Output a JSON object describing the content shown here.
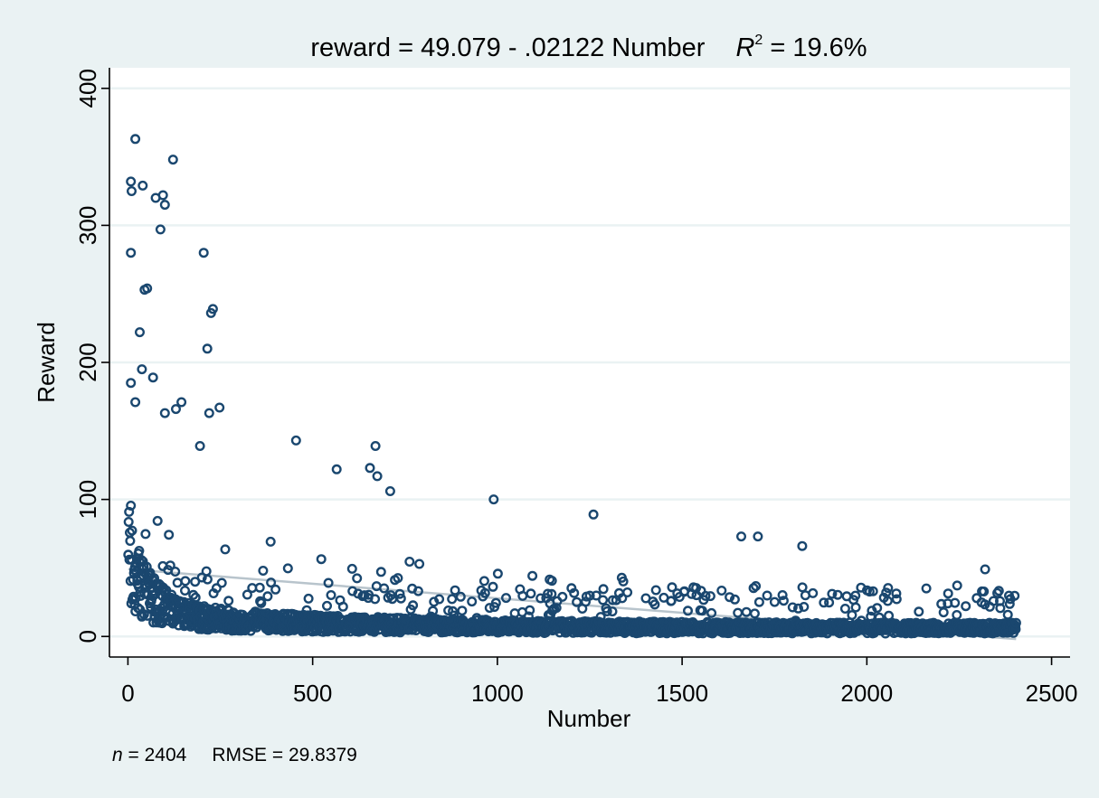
{
  "chart_data": {
    "type": "scatter",
    "title": {
      "prefix": "reward = 49.079 - .02122 Number",
      "r2_symbol": "R",
      "r2_superscript": "2",
      "r2_value": " = 19.6%"
    },
    "xlabel": "Number",
    "ylabel": "Reward",
    "xlim": [
      -50,
      2550
    ],
    "ylim": [
      -15,
      415
    ],
    "x_ticks": [
      0,
      500,
      1000,
      1500,
      2000,
      2500
    ],
    "y_ticks": [
      0,
      100,
      200,
      300,
      400
    ],
    "grid": "horizontal",
    "legend": "none",
    "colors": {
      "background": "#eaf2f3",
      "plot_area": "#ffffff",
      "markers": "#1a476f",
      "gridlines": "#eaf2f3",
      "fit_line": "#b8c4cc"
    },
    "marker": "hollow-circle",
    "fit_line": {
      "intercept": 49.079,
      "slope": -0.02122,
      "x_range": [
        1,
        2404
      ]
    },
    "point_count": 2404,
    "notable_points": [
      {
        "x": 8,
        "y": 332
      },
      {
        "x": 10,
        "y": 325
      },
      {
        "x": 20,
        "y": 363
      },
      {
        "x": 40,
        "y": 329
      },
      {
        "x": 75,
        "y": 320
      },
      {
        "x": 95,
        "y": 322
      },
      {
        "x": 100,
        "y": 315
      },
      {
        "x": 122,
        "y": 348
      },
      {
        "x": 88,
        "y": 297
      },
      {
        "x": 8,
        "y": 280
      },
      {
        "x": 205,
        "y": 280
      },
      {
        "x": 45,
        "y": 253
      },
      {
        "x": 52,
        "y": 254
      },
      {
        "x": 225,
        "y": 236
      },
      {
        "x": 230,
        "y": 239
      },
      {
        "x": 215,
        "y": 210
      },
      {
        "x": 32,
        "y": 222
      },
      {
        "x": 38,
        "y": 195
      },
      {
        "x": 68,
        "y": 189
      },
      {
        "x": 8,
        "y": 185
      },
      {
        "x": 20,
        "y": 171
      },
      {
        "x": 145,
        "y": 171
      },
      {
        "x": 248,
        "y": 167
      },
      {
        "x": 220,
        "y": 163
      },
      {
        "x": 100,
        "y": 163
      },
      {
        "x": 130,
        "y": 166
      },
      {
        "x": 195,
        "y": 139
      },
      {
        "x": 455,
        "y": 143
      },
      {
        "x": 670,
        "y": 139
      },
      {
        "x": 565,
        "y": 122
      },
      {
        "x": 655,
        "y": 123
      },
      {
        "x": 675,
        "y": 117
      },
      {
        "x": 710,
        "y": 106
      },
      {
        "x": 990,
        "y": 100
      },
      {
        "x": 1260,
        "y": 89
      },
      {
        "x": 1660,
        "y": 73
      },
      {
        "x": 1705,
        "y": 73
      },
      {
        "x": 1825,
        "y": 66
      },
      {
        "x": 2320,
        "y": 49
      }
    ],
    "footer": {
      "n_symbol": "n",
      "n_value": " = 2404",
      "rmse": "RMSE =  29.8379"
    }
  }
}
